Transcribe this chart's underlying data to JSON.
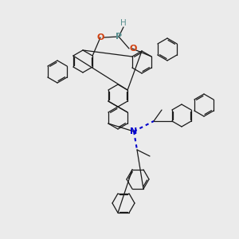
{
  "bg_color": "#ebebeb",
  "atom_colors": {
    "P": "#5a9090",
    "O": "#d04010",
    "N": "#0000cc",
    "H": "#5a9090",
    "C": "#1a1a1a"
  },
  "bond_color": "#1a1a1a",
  "bond_lw": 0.9,
  "figsize": [
    3.0,
    3.0
  ],
  "dpi": 100
}
